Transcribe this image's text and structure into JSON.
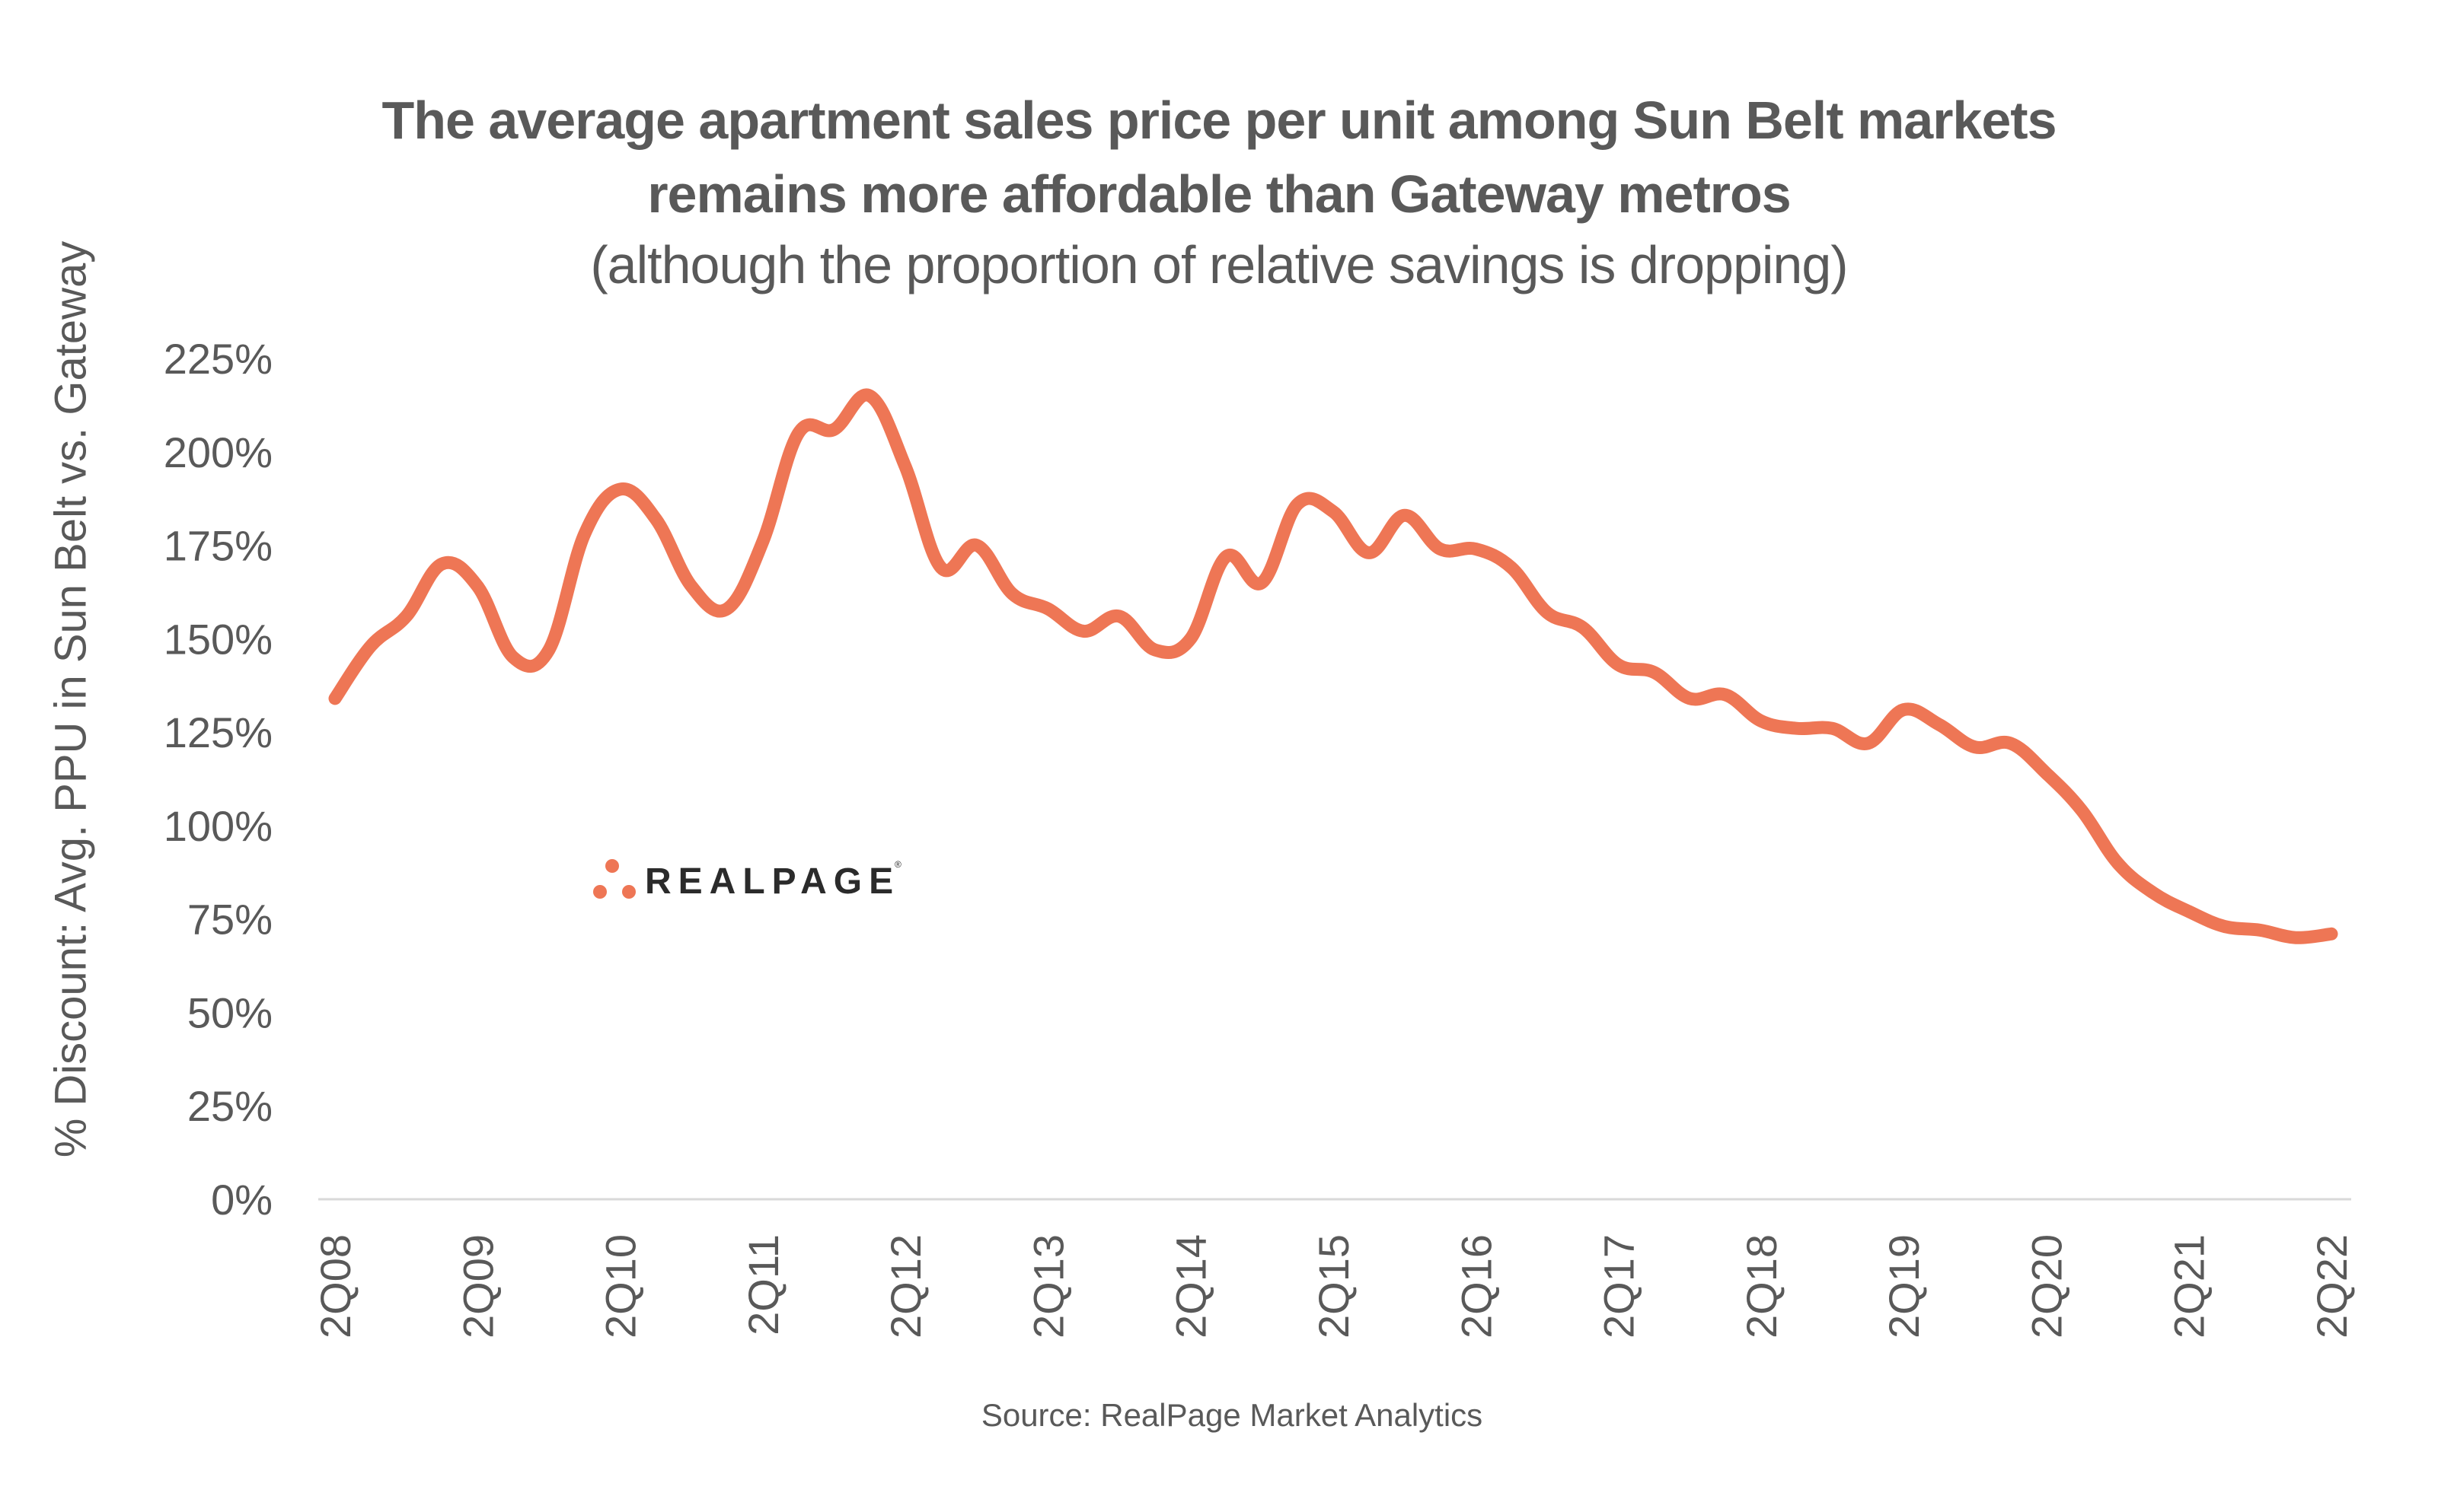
{
  "chart_data": {
    "type": "line",
    "title": "The average apartment sales price per unit among Sun Belt markets remains more affordable than Gateway metros",
    "title_lines": [
      "The average apartment sales price per unit among Sun Belt markets",
      "remains more affordable than Gateway metros"
    ],
    "subtitle": "(although the proportion of relative savings is dropping)",
    "xlabel": "",
    "ylabel": "% Discount: Avg. PPU in Sun Belt vs. Gateway",
    "ylim": [
      0,
      225
    ],
    "y_ticks": [
      0,
      25,
      50,
      75,
      100,
      125,
      150,
      175,
      200,
      225
    ],
    "y_tick_labels": [
      "0%",
      "25%",
      "50%",
      "75%",
      "100%",
      "125%",
      "150%",
      "175%",
      "200%",
      "225%"
    ],
    "x_tick_labels": [
      "2Q08",
      "2Q09",
      "2Q10",
      "2Q11",
      "2Q12",
      "2Q13",
      "2Q14",
      "2Q15",
      "2Q16",
      "2Q17",
      "2Q18",
      "2Q19",
      "2Q20",
      "2Q21",
      "2Q22"
    ],
    "grid": false,
    "legend": "none",
    "line_color": "#ee7655",
    "series": [
      {
        "name": "% Discount: Avg. PPU in Sun Belt vs. Gateway",
        "x": [
          "2Q08",
          "3Q08",
          "4Q08",
          "1Q09",
          "2Q09",
          "3Q09",
          "4Q09",
          "1Q10",
          "2Q10",
          "3Q10",
          "4Q10",
          "1Q11",
          "2Q11",
          "3Q11",
          "4Q11",
          "1Q12",
          "2Q12",
          "3Q12",
          "4Q12",
          "1Q13",
          "2Q13",
          "3Q13",
          "4Q13",
          "1Q14",
          "2Q14",
          "3Q14",
          "4Q14",
          "1Q15",
          "2Q15",
          "3Q15",
          "4Q15",
          "1Q16",
          "2Q16",
          "3Q16",
          "4Q16",
          "1Q17",
          "2Q17",
          "3Q17",
          "4Q17",
          "1Q18",
          "2Q18",
          "3Q18",
          "4Q18",
          "1Q19",
          "2Q19",
          "3Q19",
          "4Q19",
          "1Q20",
          "2Q20",
          "3Q20",
          "4Q20",
          "1Q21",
          "2Q21",
          "3Q21",
          "4Q21",
          "1Q22",
          "2Q22"
        ],
        "values": [
          134,
          148,
          156,
          170,
          164,
          145,
          147,
          178,
          190,
          182,
          164,
          158,
          176,
          205,
          206,
          215,
          196,
          169,
          175,
          162,
          158,
          152,
          156,
          147,
          150,
          172,
          165,
          186,
          184,
          173,
          183,
          174,
          174,
          169,
          157,
          153,
          143,
          141,
          134,
          135,
          128,
          126,
          126,
          122,
          131,
          127,
          121,
          122,
          114,
          104,
          90,
          82,
          77,
          73,
          72,
          70,
          71
        ]
      }
    ]
  },
  "logo": {
    "text": "REALPAGE",
    "registered": "®"
  },
  "source": "Source: RealPage Market Analytics"
}
